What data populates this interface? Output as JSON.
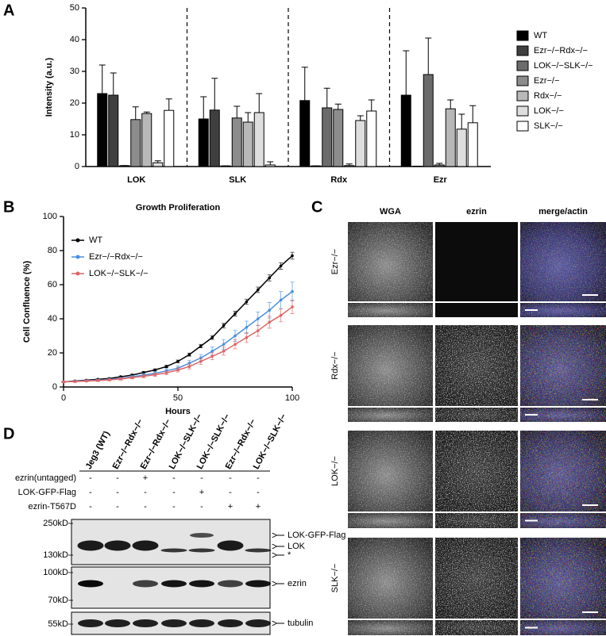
{
  "panels": {
    "a": "A",
    "b": "B",
    "c": "C",
    "d": "D"
  },
  "chart_data": [
    {
      "type": "bar",
      "ylabel": "Intensity (a.u.)",
      "categories": [
        "LOK",
        "SLK",
        "Rdx",
        "Ezr"
      ],
      "ylim": [
        0,
        50
      ],
      "yticks": [
        0,
        10,
        20,
        30,
        40,
        50
      ],
      "series": [
        {
          "name": "WT",
          "color": "#000000",
          "values": [
            23,
            15,
            20.8,
            22.5
          ],
          "errors": [
            9,
            7,
            10.5,
            14
          ]
        },
        {
          "name": "Ezr−/−Rdx−/−",
          "color": "#3f3f3f",
          "values": [
            22.5,
            17.8,
            0.2,
            0.1
          ],
          "errors": [
            7,
            10,
            0,
            0
          ]
        },
        {
          "name": "LOK−/−SLK−/−",
          "color": "#6b6b6b",
          "values": [
            0.3,
            0.2,
            18.5,
            29
          ],
          "errors": [
            0,
            0,
            6.2,
            11.5
          ]
        },
        {
          "name": "Ezr−/−",
          "color": "#8c8c8c",
          "values": [
            14.8,
            15.3,
            18,
            0.5
          ],
          "errors": [
            4,
            3.7,
            1.7,
            0.5
          ]
        },
        {
          "name": "Rdx−/−",
          "color": "#b8b8b8",
          "values": [
            16.7,
            14,
            0.3,
            18.2
          ],
          "errors": [
            0.5,
            3,
            0.5,
            2.8
          ]
        },
        {
          "name": "LOK−/−",
          "color": "#dedede",
          "values": [
            1.2,
            17,
            14.5,
            11.8
          ],
          "errors": [
            0.6,
            6,
            1.5,
            4.7
          ]
        },
        {
          "name": "SLK−/−",
          "color": "#ffffff",
          "values": [
            17.7,
            0.5,
            17.5,
            13.8
          ],
          "errors": [
            3.6,
            1,
            3.5,
            5.4
          ]
        }
      ]
    },
    {
      "type": "line",
      "title": "Growth Proliferation",
      "xlabel": "Hours",
      "ylabel": "Cell Confluence (%)",
      "xlim": [
        0,
        100
      ],
      "ylim": [
        0,
        100
      ],
      "xticks": [
        0,
        50,
        100
      ],
      "yticks": [
        0,
        20,
        40,
        60,
        80,
        100
      ],
      "legend": "upper left",
      "x": [
        0,
        5,
        10,
        15,
        20,
        25,
        30,
        35,
        40,
        45,
        50,
        55,
        60,
        65,
        70,
        75,
        80,
        85,
        90,
        95,
        100
      ],
      "series": [
        {
          "name": "WT",
          "color": "#000000",
          "values": [
            3,
            3.5,
            4,
            4.5,
            5,
            6,
            7,
            8.5,
            10,
            12,
            15,
            19,
            24,
            29,
            36,
            43,
            50,
            57,
            64,
            71,
            77
          ],
          "errors": [
            0.3,
            0.3,
            0.3,
            0.3,
            0.4,
            0.4,
            0.5,
            0.5,
            0.6,
            0.7,
            0.8,
            0.9,
            1,
            1.1,
            1.3,
            1.4,
            1.5,
            1.6,
            1.8,
            1.9,
            2
          ]
        },
        {
          "name": "Ezr−/−Rdx−/−",
          "color": "#4a8fe0",
          "values": [
            3,
            3.3,
            3.7,
            4,
            4.5,
            5,
            6,
            7,
            8,
            9.5,
            11,
            14,
            17,
            21,
            25,
            30,
            35,
            40,
            45,
            51,
            56
          ],
          "errors": [
            0.5,
            0.5,
            0.5,
            0.6,
            0.6,
            0.7,
            0.8,
            0.9,
            1,
            1.2,
            1.4,
            1.7,
            2,
            2.4,
            2.8,
            3.2,
            3.6,
            4,
            4.5,
            5,
            5.5
          ]
        },
        {
          "name": "LOK−/−SLK−/−",
          "color": "#e06565",
          "values": [
            3,
            3.2,
            3.5,
            3.8,
            4.2,
            4.7,
            5.5,
            6.3,
            7.2,
            8.3,
            10,
            12,
            15,
            18,
            21,
            25,
            29,
            33,
            38,
            42,
            47
          ],
          "errors": [
            0.5,
            0.5,
            0.5,
            0.6,
            0.6,
            0.7,
            0.7,
            0.8,
            0.9,
            1,
            1.2,
            1.4,
            1.7,
            2,
            2.3,
            2.6,
            2.9,
            3.2,
            3.5,
            3.8,
            4
          ]
        }
      ]
    }
  ],
  "microscopy": {
    "columns": [
      "WGA",
      "ezrin",
      "merge/actin"
    ],
    "rows": [
      "Ezr−/−",
      "Rdx−/−",
      "LOK−/−",
      "SLK−/−"
    ]
  },
  "blot": {
    "lanes": [
      "Jeg3 (WT)",
      "Ezr−/−Rdx−/−",
      "Ezr−/−Rdx−/−",
      "LOK−/−SLK−/−",
      "LOK−/−SLK−/−",
      "Ezr−/−Rdx−/−",
      "LOK−/−SLK−/−"
    ],
    "conditions": [
      {
        "label": "ezrin(untagged)",
        "marks": [
          "-",
          "-",
          "+",
          "-",
          "-",
          "-",
          "-"
        ]
      },
      {
        "label": "LOK-GFP-Flag",
        "marks": [
          "-",
          "-",
          "-",
          "-",
          "+",
          "-",
          "-"
        ]
      },
      {
        "label": "ezrin-T567D",
        "marks": [
          "-",
          "-",
          "-",
          "-",
          "-",
          "+",
          "+"
        ]
      }
    ],
    "markers": [
      "250kD",
      "130kD",
      "100kD",
      "70kD",
      "55kD"
    ],
    "bands": [
      "LOK-GFP-Flag",
      "LOK",
      "*",
      "ezrin",
      "tubulin"
    ]
  }
}
